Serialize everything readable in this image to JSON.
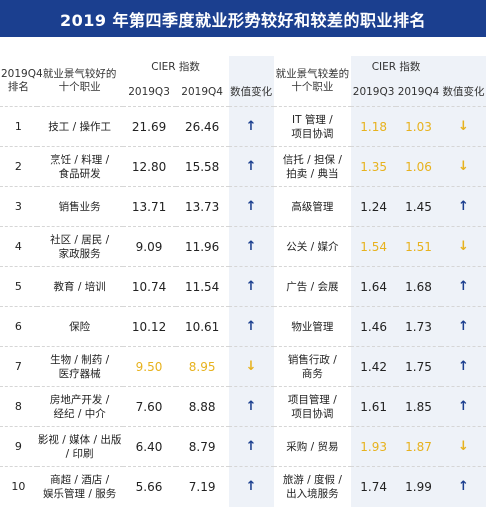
{
  "title": "2019 年第四季度就业形势较好和较差的职业排名",
  "header": {
    "rank": "2019Q4\n排名",
    "good_jobs": "就业景气较好的\n十个职业",
    "bad_jobs": "就业景气较差的\n十个职业",
    "cier": "CIER 指数",
    "q3": "2019Q3",
    "q4": "2019Q4",
    "change": "数值变化"
  },
  "colors": {
    "accent": "#1b3f8f",
    "highlight": "#e7b21e",
    "shade": "#eef2f8"
  },
  "rows": [
    {
      "rank": "1",
      "good_job": "技工 / 操作工",
      "good_q3": "21.69",
      "good_q4": "26.46",
      "good_trend": "up",
      "good_hl": false,
      "bad_job": "IT 管理 /\n项目协调",
      "bad_q3": "1.18",
      "bad_q4": "1.03",
      "bad_trend": "down",
      "bad_hl": true
    },
    {
      "rank": "2",
      "good_job": "烹饪 / 料理 /\n食品研发",
      "good_q3": "12.80",
      "good_q4": "15.58",
      "good_trend": "up",
      "good_hl": false,
      "bad_job": "信托 / 担保 /\n拍卖 / 典当",
      "bad_q3": "1.35",
      "bad_q4": "1.06",
      "bad_trend": "down",
      "bad_hl": true
    },
    {
      "rank": "3",
      "good_job": "销售业务",
      "good_q3": "13.71",
      "good_q4": "13.73",
      "good_trend": "up",
      "good_hl": false,
      "bad_job": "高级管理",
      "bad_q3": "1.24",
      "bad_q4": "1.45",
      "bad_trend": "up",
      "bad_hl": false
    },
    {
      "rank": "4",
      "good_job": "社区 / 居民 /\n家政服务",
      "good_q3": "9.09",
      "good_q4": "11.96",
      "good_trend": "up",
      "good_hl": false,
      "bad_job": "公关 / 媒介",
      "bad_q3": "1.54",
      "bad_q4": "1.51",
      "bad_trend": "down",
      "bad_hl": true
    },
    {
      "rank": "5",
      "good_job": "教育 / 培训",
      "good_q3": "10.74",
      "good_q4": "11.54",
      "good_trend": "up",
      "good_hl": false,
      "bad_job": "广告 / 会展",
      "bad_q3": "1.64",
      "bad_q4": "1.68",
      "bad_trend": "up",
      "bad_hl": false
    },
    {
      "rank": "6",
      "good_job": "保险",
      "good_q3": "10.12",
      "good_q4": "10.61",
      "good_trend": "up",
      "good_hl": false,
      "bad_job": "物业管理",
      "bad_q3": "1.46",
      "bad_q4": "1.73",
      "bad_trend": "up",
      "bad_hl": false
    },
    {
      "rank": "7",
      "good_job": "生物 / 制药 /\n医疗器械",
      "good_q3": "9.50",
      "good_q4": "8.95",
      "good_trend": "down",
      "good_hl": true,
      "bad_job": "销售行政 /\n商务",
      "bad_q3": "1.42",
      "bad_q4": "1.75",
      "bad_trend": "up",
      "bad_hl": false
    },
    {
      "rank": "8",
      "good_job": "房地产开发 /\n经纪 / 中介",
      "good_q3": "7.60",
      "good_q4": "8.88",
      "good_trend": "up",
      "good_hl": false,
      "bad_job": "项目管理 /\n项目协调",
      "bad_q3": "1.61",
      "bad_q4": "1.85",
      "bad_trend": "up",
      "bad_hl": false
    },
    {
      "rank": "9",
      "good_job": "影视 / 媒体 / 出版\n/ 印刷",
      "good_q3": "6.40",
      "good_q4": "8.79",
      "good_trend": "up",
      "good_hl": false,
      "bad_job": "采购 / 贸易",
      "bad_q3": "1.93",
      "bad_q4": "1.87",
      "bad_trend": "down",
      "bad_hl": true
    },
    {
      "rank": "10",
      "good_job": "商超 / 酒店 /\n娱乐管理 / 服务",
      "good_q3": "5.66",
      "good_q4": "7.19",
      "good_trend": "up",
      "good_hl": false,
      "bad_job": "旅游 / 度假 /\n出入境服务",
      "bad_q3": "1.74",
      "bad_q4": "1.99",
      "bad_trend": "up",
      "bad_hl": false
    }
  ]
}
